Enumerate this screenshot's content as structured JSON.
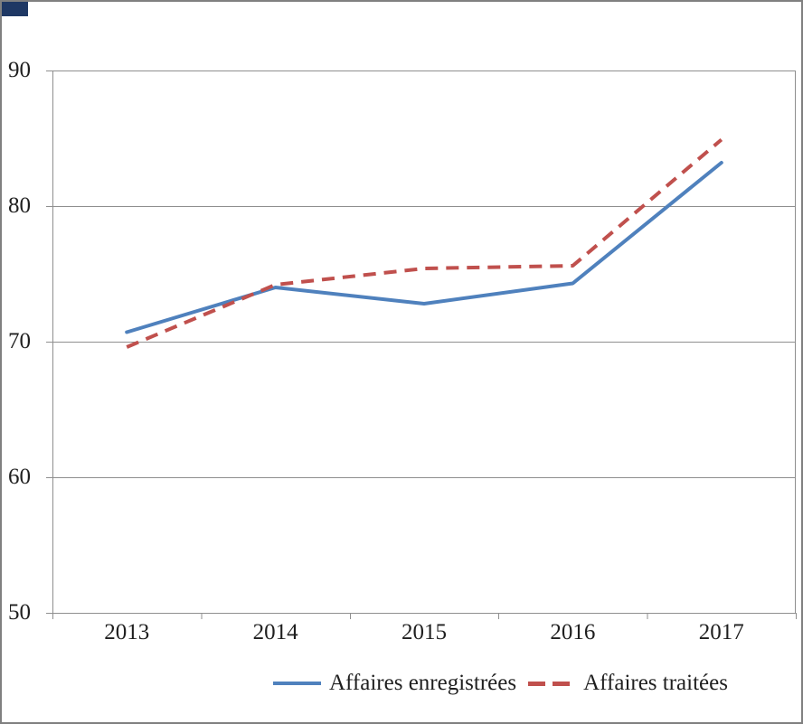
{
  "colors": {
    "blue": "#4F81BD",
    "red": "#C0504D",
    "grid": "#8F8F8F",
    "frame": "#808080",
    "text": "#1F1F1F",
    "corner": "#1F3864"
  },
  "chart_data": {
    "type": "line",
    "title": "",
    "categories": [
      "2013",
      "2014",
      "2015",
      "2016",
      "2017"
    ],
    "series": [
      {
        "name": "Affaires enregistrées",
        "color": "#4F81BD",
        "line_style": "solid",
        "values": [
          70.7,
          74.0,
          72.8,
          74.3,
          83.2
        ]
      },
      {
        "name": "Affaires traitées",
        "color": "#C0504D",
        "line_style": "dashed",
        "values": [
          69.6,
          74.2,
          75.4,
          75.6,
          84.9
        ]
      }
    ],
    "xlabel": "",
    "ylabel": "",
    "ylim": [
      50,
      90
    ],
    "yticks": [
      50,
      60,
      70,
      80,
      90
    ],
    "grid": "horizontal",
    "legend_position": "bottom"
  }
}
